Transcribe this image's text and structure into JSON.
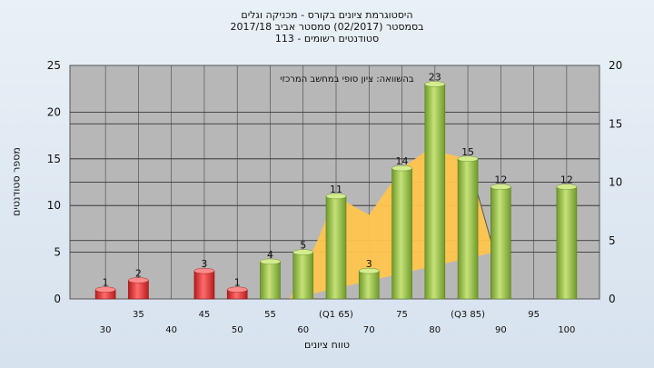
{
  "chart_data": {
    "type": "bar",
    "title_lines": [
      "היסטוגרמת ציונים בקורס - מכניקה וגלים",
      "בסמסטר  (02/2017)  סמסטר אביב 2017/18",
      "סטודנטים רשומים - 113"
    ],
    "ylabel": "מספר סטודנטים",
    "xlabel": "טווח ציונים",
    "annotation": "בהשוואה: ציון סופי במחשב המרכזי",
    "ylim": [
      0,
      25
    ],
    "y2lim": [
      0,
      20
    ],
    "yticks": [
      0,
      5,
      10,
      15,
      20,
      25
    ],
    "y2ticks": [
      0,
      5,
      10,
      15,
      20
    ],
    "grid": true,
    "x_labels": [
      {
        "text": "30",
        "pos": 30,
        "row": 2
      },
      {
        "text": "35",
        "pos": 35,
        "row": 1
      },
      {
        "text": "40",
        "pos": 40,
        "row": 2
      },
      {
        "text": "45",
        "pos": 45,
        "row": 1
      },
      {
        "text": "50",
        "pos": 50,
        "row": 2
      },
      {
        "text": "55",
        "pos": 55,
        "row": 1
      },
      {
        "text": "60",
        "pos": 60,
        "row": 2
      },
      {
        "text": "(Q1 65)",
        "pos": 65,
        "row": 1
      },
      {
        "text": "70",
        "pos": 70,
        "row": 2
      },
      {
        "text": "75",
        "pos": 75,
        "row": 1
      },
      {
        "text": "80",
        "pos": 80,
        "row": 2
      },
      {
        "text": "(Q3 85)",
        "pos": 85,
        "row": 1
      },
      {
        "text": "90",
        "pos": 90,
        "row": 2
      },
      {
        "text": "95",
        "pos": 95,
        "row": 1
      },
      {
        "text": "100",
        "pos": 100,
        "row": 2
      }
    ],
    "bars": [
      {
        "x": 30,
        "value": 1,
        "color": "#d22f2f"
      },
      {
        "x": 35,
        "value": 2,
        "color": "#d22f2f"
      },
      {
        "x": 45,
        "value": 3,
        "color": "#d22f2f"
      },
      {
        "x": 50,
        "value": 1,
        "color": "#d22f2f"
      },
      {
        "x": 55,
        "value": 4,
        "color": "#8fb83f"
      },
      {
        "x": 60,
        "value": 5,
        "color": "#8fb83f"
      },
      {
        "x": 65,
        "value": 11,
        "color": "#8fb83f"
      },
      {
        "x": 70,
        "value": 3,
        "color": "#8fb83f"
      },
      {
        "x": 75,
        "value": 14,
        "color": "#8fb83f"
      },
      {
        "x": 80,
        "value": 23,
        "color": "#8fb83f"
      },
      {
        "x": 85,
        "value": 15,
        "color": "#8fb83f"
      },
      {
        "x": 90,
        "value": 12,
        "color": "#8fb83f"
      },
      {
        "x": 100,
        "value": 12,
        "color": "#8fb83f"
      }
    ],
    "area_series": {
      "color": "#ffc44d",
      "points": [
        [
          58,
          0
        ],
        [
          62,
          6
        ],
        [
          65,
          11
        ],
        [
          70,
          9
        ],
        [
          75,
          14
        ],
        [
          79,
          16
        ],
        [
          85,
          15
        ],
        [
          89,
          5
        ]
      ]
    },
    "colors": {
      "plot_bg": "#b7b7b7",
      "grid": "#222222"
    }
  }
}
